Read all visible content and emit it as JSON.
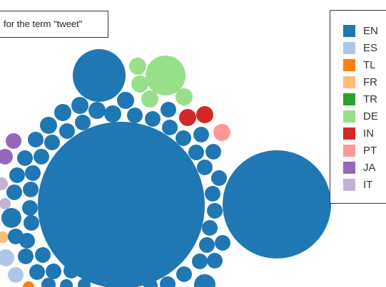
{
  "query": {
    "text": "for the term \"tweet\""
  },
  "legend": [
    {
      "code": "EN",
      "color": "#1f77b4"
    },
    {
      "code": "ES",
      "color": "#aec7e8"
    },
    {
      "code": "TL",
      "color": "#ff7f0e"
    },
    {
      "code": "FR",
      "color": "#ffbb78"
    },
    {
      "code": "TR",
      "color": "#2ca02c"
    },
    {
      "code": "DE",
      "color": "#98df8a"
    },
    {
      "code": "IN",
      "color": "#d62728"
    },
    {
      "code": "PT",
      "color": "#ff9896"
    },
    {
      "code": "JA",
      "color": "#9467bd"
    },
    {
      "code": "IT",
      "color": "#c5b0d5"
    }
  ]
}
